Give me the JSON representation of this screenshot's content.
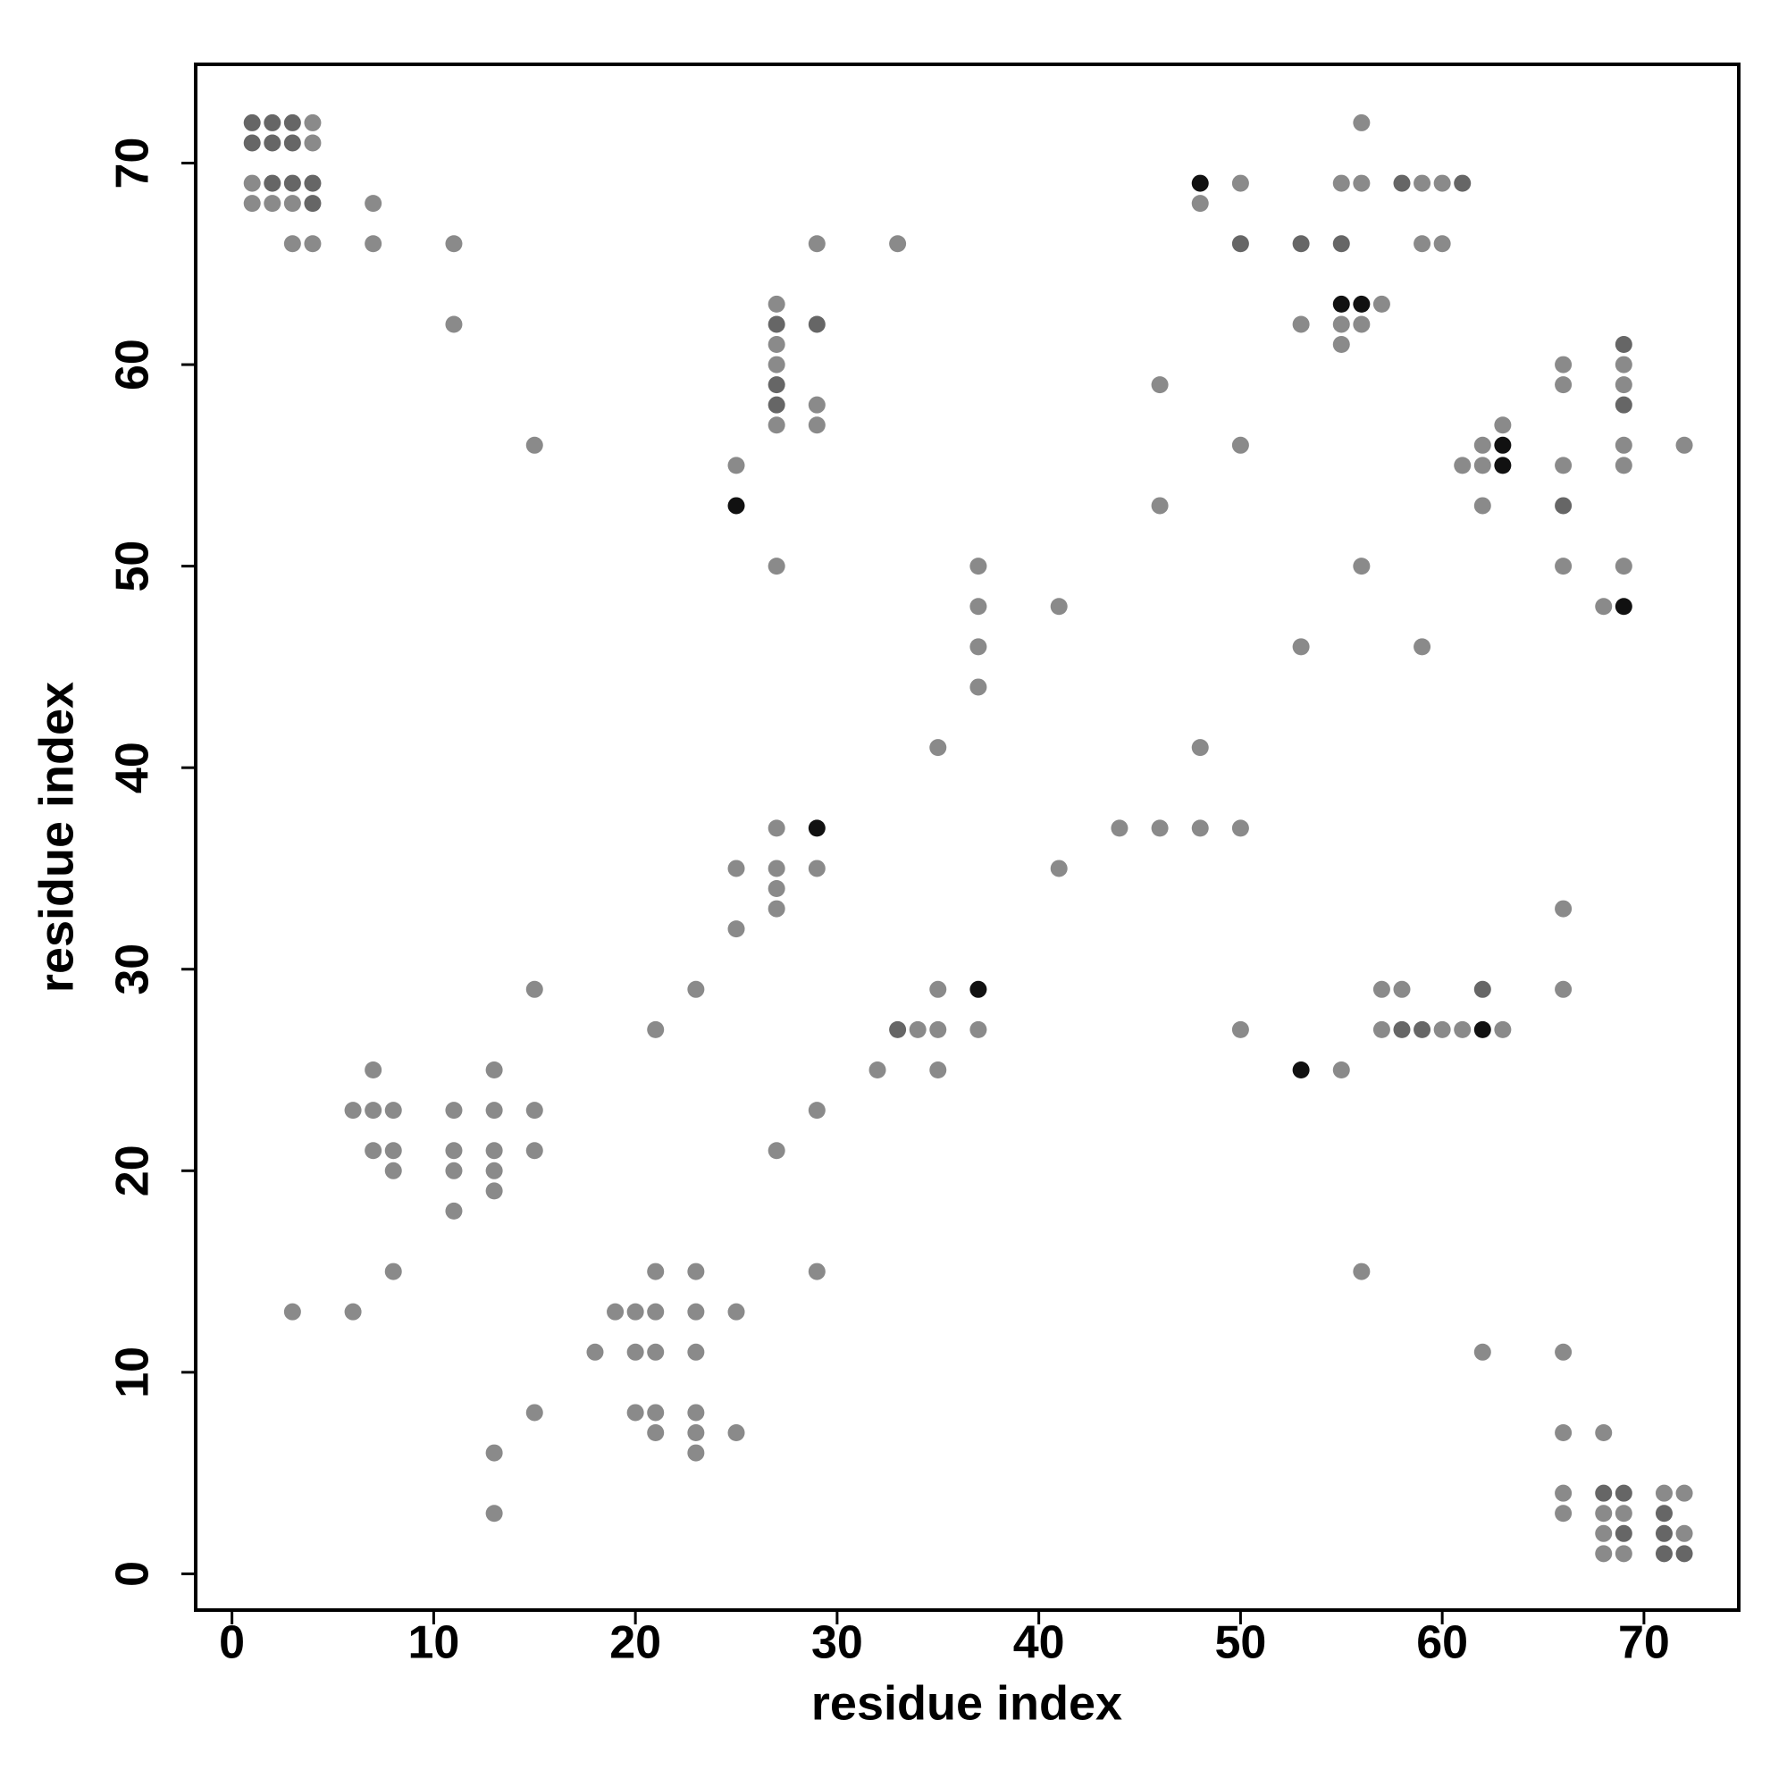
{
  "chart_data": {
    "type": "scatter",
    "x_label": "residue index",
    "y_label": "residue index",
    "xlim": [
      -1.8,
      74.7
    ],
    "ylim": [
      -1.8,
      74.9
    ],
    "xticks": [
      0,
      10,
      20,
      30,
      40,
      50,
      60,
      70
    ],
    "yticks": [
      0,
      10,
      20,
      30,
      40,
      50,
      60,
      70
    ],
    "series": [
      {
        "color": "#8a8a8a",
        "x": [
          4,
          4,
          1,
          1,
          2,
          3,
          3,
          4,
          7,
          7,
          11,
          11,
          15,
          25,
          27,
          27,
          27,
          27,
          27,
          29,
          29,
          29,
          33,
          37,
          37,
          37,
          37,
          41,
          35,
          46,
          46,
          48,
          48,
          50,
          50,
          53,
          53,
          55,
          55,
          55,
          56,
          56,
          56,
          56,
          57,
          59,
          59,
          59,
          60,
          60,
          61,
          62,
          62,
          62,
          63,
          66,
          66,
          66,
          66,
          68,
          69,
          69,
          69,
          69,
          69,
          72,
          25,
          25,
          27,
          27,
          27,
          27,
          27,
          29,
          29,
          29,
          41,
          44,
          46,
          48,
          50,
          50,
          32,
          34,
          35,
          35,
          35,
          37,
          55,
          57,
          57,
          58,
          60,
          61,
          62,
          63,
          66,
          66,
          66,
          66,
          66,
          66,
          56,
          3,
          6,
          6,
          7,
          7,
          7,
          8,
          8,
          8,
          8,
          11,
          11,
          11,
          11,
          13,
          13,
          13,
          13,
          13,
          13,
          13,
          15,
          15,
          15,
          15,
          18,
          19,
          20,
          20,
          20,
          21,
          21,
          21,
          21,
          21,
          21,
          23,
          23,
          23,
          23,
          23,
          23,
          23,
          25,
          25,
          68,
          68,
          68,
          68,
          69,
          69,
          71,
          72,
          72
        ],
        "values": [
          72,
          71,
          69,
          68,
          68,
          68,
          66,
          66,
          68,
          66,
          66,
          62,
          56,
          55,
          63,
          61,
          60,
          57,
          50,
          66,
          58,
          57,
          66,
          50,
          48,
          46,
          44,
          48,
          41,
          59,
          53,
          68,
          41,
          69,
          56,
          62,
          46,
          69,
          62,
          61,
          72,
          69,
          62,
          50,
          63,
          69,
          66,
          46,
          69,
          66,
          55,
          56,
          55,
          53,
          57,
          60,
          59,
          55,
          50,
          48,
          60,
          59,
          56,
          55,
          50,
          56,
          35,
          32,
          37,
          35,
          34,
          33,
          21,
          35,
          23,
          15,
          35,
          37,
          37,
          37,
          37,
          27,
          25,
          27,
          29,
          27,
          25,
          27,
          25,
          29,
          27,
          29,
          27,
          27,
          11,
          27,
          33,
          29,
          11,
          7,
          4,
          3,
          15,
          13,
          23,
          13,
          25,
          23,
          21,
          23,
          21,
          20,
          15,
          23,
          21,
          20,
          18,
          25,
          23,
          21,
          20,
          19,
          6,
          3,
          29,
          23,
          21,
          8,
          11,
          13,
          13,
          11,
          8,
          27,
          15,
          13,
          11,
          8,
          7,
          29,
          15,
          13,
          11,
          8,
          7,
          6,
          13,
          7,
          7,
          3,
          2,
          1,
          3,
          1,
          4,
          4,
          2
        ]
      },
      {
        "color": "#666666",
        "x": [
          1,
          2,
          3,
          1,
          2,
          3,
          2,
          3,
          4,
          4,
          27,
          27,
          27,
          29,
          50,
          53,
          55,
          58,
          61,
          66,
          69,
          69,
          33,
          58,
          59,
          62,
          68,
          69,
          69,
          71,
          71,
          71,
          72
        ],
        "values": [
          72,
          72,
          72,
          71,
          71,
          71,
          69,
          69,
          69,
          68,
          62,
          59,
          58,
          62,
          66,
          66,
          66,
          69,
          69,
          53,
          61,
          58,
          27,
          27,
          27,
          29,
          4,
          4,
          2,
          3,
          2,
          1,
          1
        ]
      },
      {
        "color": "#111111",
        "x": [
          25,
          48,
          55,
          56,
          63,
          63,
          69,
          29,
          37,
          53,
          62
        ],
        "values": [
          53,
          69,
          63,
          63,
          56,
          55,
          48,
          37,
          29,
          25,
          27
        ]
      }
    ]
  }
}
